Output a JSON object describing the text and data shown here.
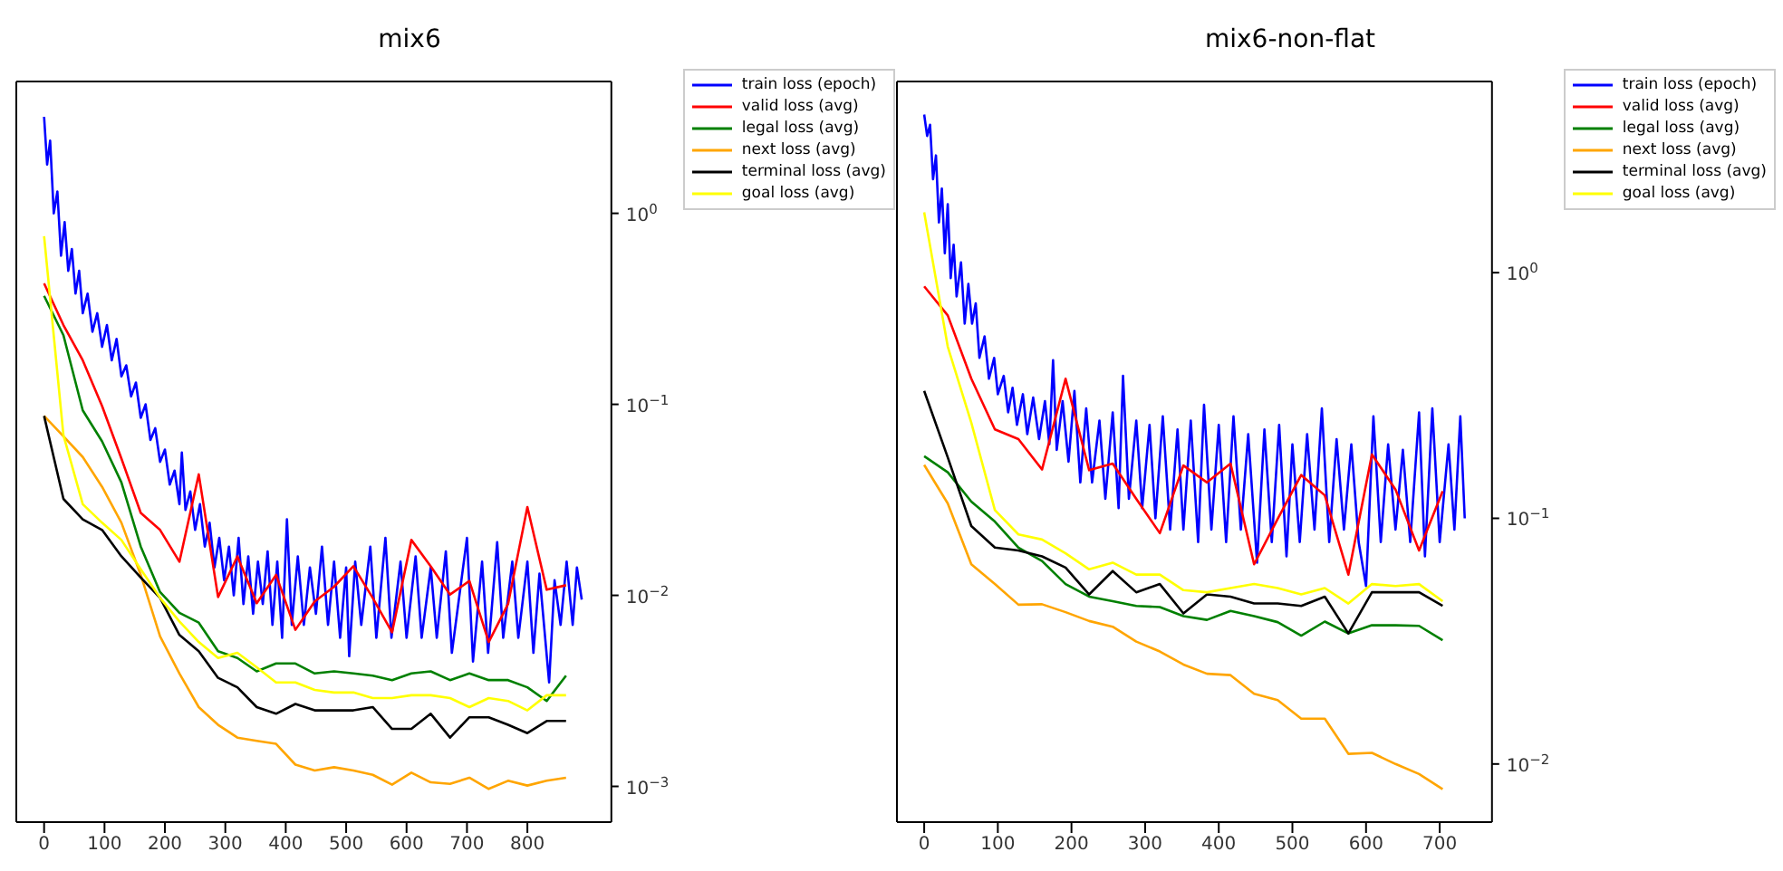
{
  "chart_data": [
    {
      "type": "line",
      "title": "mix6",
      "log": "y",
      "grid": false,
      "legend": "top right",
      "xlim": [
        -46,
        939
      ],
      "ylim": [
        0.00065,
        4.9
      ],
      "xticks": [
        0,
        100,
        200,
        300,
        400,
        500,
        600,
        700,
        800
      ],
      "yticks": [
        {
          "value": 0.001,
          "label": "10$^{−3}$"
        },
        {
          "value": 0.01,
          "label": "10$^{−2}$"
        },
        {
          "value": 0.1,
          "label": "10$^{−1}$"
        },
        {
          "value": 1,
          "label": "10$^{0}$"
        }
      ],
      "series": [
        {
          "name": "train loss (epoch)",
          "color": "#0000ff",
          "x": [
            0,
            5,
            10,
            16,
            22,
            28,
            34,
            40,
            46,
            52,
            58,
            64,
            72,
            80,
            88,
            96,
            104,
            112,
            120,
            128,
            136,
            144,
            152,
            160,
            168,
            176,
            184,
            192,
            200,
            208,
            216,
            224,
            228,
            234,
            242,
            250,
            258,
            266,
            274,
            282,
            290,
            298,
            306,
            314,
            322,
            330,
            338,
            346,
            354,
            362,
            370,
            378,
            386,
            394,
            402,
            410,
            420,
            430,
            440,
            450,
            460,
            470,
            480,
            490,
            500,
            505,
            515,
            525,
            540,
            550,
            565,
            575,
            590,
            600,
            615,
            625,
            640,
            650,
            665,
            675,
            700,
            710,
            725,
            735,
            750,
            760,
            775,
            785,
            800,
            810,
            820,
            836,
            845,
            855,
            865,
            875,
            882,
            890
          ],
          "values": [
            3.2,
            1.8,
            2.4,
            1.0,
            1.3,
            0.6,
            0.9,
            0.5,
            0.65,
            0.38,
            0.5,
            0.3,
            0.38,
            0.24,
            0.3,
            0.2,
            0.26,
            0.17,
            0.22,
            0.14,
            0.16,
            0.11,
            0.13,
            0.085,
            0.1,
            0.065,
            0.075,
            0.05,
            0.058,
            0.038,
            0.045,
            0.03,
            0.056,
            0.028,
            0.035,
            0.022,
            0.03,
            0.018,
            0.024,
            0.014,
            0.02,
            0.012,
            0.018,
            0.01,
            0.02,
            0.009,
            0.016,
            0.008,
            0.015,
            0.009,
            0.017,
            0.007,
            0.015,
            0.006,
            0.025,
            0.007,
            0.016,
            0.007,
            0.014,
            0.008,
            0.018,
            0.007,
            0.015,
            0.006,
            0.014,
            0.0048,
            0.015,
            0.007,
            0.018,
            0.006,
            0.02,
            0.006,
            0.015,
            0.006,
            0.016,
            0.006,
            0.014,
            0.006,
            0.017,
            0.005,
            0.02,
            0.0045,
            0.015,
            0.005,
            0.019,
            0.006,
            0.015,
            0.006,
            0.015,
            0.005,
            0.013,
            0.0035,
            0.012,
            0.007,
            0.015,
            0.007,
            0.014,
            0.0095
          ]
        },
        {
          "name": "valid loss (avg)",
          "color": "#ff0000",
          "x": [
            0,
            32,
            64,
            96,
            128,
            160,
            192,
            224,
            256,
            288,
            320,
            352,
            384,
            416,
            448,
            480,
            512,
            544,
            576,
            608,
            640,
            672,
            704,
            736,
            768,
            800,
            832,
            864
          ],
          "values": [
            0.43,
            0.26,
            0.17,
            0.098,
            0.052,
            0.027,
            0.022,
            0.015,
            0.043,
            0.0098,
            0.016,
            0.0091,
            0.0128,
            0.0066,
            0.0093,
            0.0111,
            0.0142,
            0.0097,
            0.0064,
            0.0195,
            0.0142,
            0.0101,
            0.0119,
            0.0057,
            0.009,
            0.029,
            0.0107,
            0.0113
          ]
        },
        {
          "name": "legal loss (avg)",
          "color": "#008000",
          "x": [
            0,
            32,
            64,
            96,
            128,
            160,
            192,
            224,
            256,
            288,
            320,
            352,
            384,
            416,
            448,
            480,
            512,
            544,
            576,
            608,
            640,
            672,
            704,
            736,
            768,
            800,
            832,
            864
          ],
          "values": [
            0.37,
            0.23,
            0.093,
            0.064,
            0.039,
            0.018,
            0.0104,
            0.0081,
            0.0072,
            0.0051,
            0.0047,
            0.004,
            0.0044,
            0.0044,
            0.0039,
            0.004,
            0.0039,
            0.0038,
            0.0036,
            0.0039,
            0.004,
            0.0036,
            0.0039,
            0.0036,
            0.0036,
            0.0033,
            0.0028,
            0.0038
          ]
        },
        {
          "name": "next loss (avg)",
          "color": "#ffa500",
          "x": [
            0,
            32,
            64,
            96,
            128,
            160,
            192,
            224,
            256,
            288,
            320,
            352,
            384,
            416,
            448,
            480,
            512,
            544,
            576,
            608,
            640,
            672,
            704,
            736,
            768,
            800,
            832,
            864
          ],
          "values": [
            0.087,
            0.068,
            0.053,
            0.037,
            0.024,
            0.0128,
            0.0061,
            0.0039,
            0.0026,
            0.0021,
            0.0018,
            0.00173,
            0.00167,
            0.0013,
            0.00121,
            0.00126,
            0.00121,
            0.00115,
            0.00102,
            0.00118,
            0.00105,
            0.00103,
            0.00111,
            0.00097,
            0.00107,
            0.00101,
            0.00107,
            0.00111
          ]
        },
        {
          "name": "terminal loss (avg)",
          "color": "#000000",
          "x": [
            0,
            32,
            64,
            96,
            128,
            160,
            192,
            224,
            256,
            288,
            320,
            352,
            384,
            416,
            448,
            480,
            512,
            544,
            576,
            608,
            640,
            672,
            704,
            736,
            768,
            800,
            832,
            864
          ],
          "values": [
            0.087,
            0.032,
            0.025,
            0.022,
            0.016,
            0.0124,
            0.0097,
            0.0062,
            0.0051,
            0.0037,
            0.0033,
            0.0026,
            0.0024,
            0.0027,
            0.0025,
            0.0025,
            0.0025,
            0.0026,
            0.002,
            0.002,
            0.0024,
            0.0018,
            0.0023,
            0.0023,
            0.0021,
            0.0019,
            0.0022,
            0.0022
          ]
        },
        {
          "name": "goal loss (avg)",
          "color": "#ffff00",
          "x": [
            0,
            32,
            64,
            96,
            128,
            160,
            192,
            224,
            256,
            288,
            320,
            352,
            384,
            416,
            448,
            480,
            512,
            544,
            576,
            608,
            640,
            672,
            704,
            736,
            768,
            800,
            832,
            864
          ],
          "values": [
            0.76,
            0.069,
            0.03,
            0.024,
            0.0195,
            0.0137,
            0.0097,
            0.0073,
            0.0057,
            0.0047,
            0.005,
            0.0042,
            0.0035,
            0.0035,
            0.0032,
            0.0031,
            0.0031,
            0.0029,
            0.0029,
            0.003,
            0.003,
            0.0029,
            0.0026,
            0.0029,
            0.0028,
            0.0025,
            0.003,
            0.003
          ]
        }
      ]
    },
    {
      "type": "line",
      "title": "mix6-non-flat",
      "log": "y",
      "grid": false,
      "legend": "top right",
      "xlim": [
        -37,
        771
      ],
      "ylim": [
        0.0058,
        6.0
      ],
      "xticks": [
        0,
        100,
        200,
        300,
        400,
        500,
        600,
        700
      ],
      "yticks": [
        {
          "value": 0.01,
          "label": "10$^{−2}$"
        },
        {
          "value": 0.1,
          "label": "10$^{−1}$"
        },
        {
          "value": 1,
          "label": "10$^{0}$"
        }
      ],
      "series": [
        {
          "name": "train loss (epoch)",
          "color": "#0000ff",
          "x": [
            0,
            4,
            8,
            12,
            16,
            20,
            24,
            28,
            32,
            36,
            40,
            44,
            50,
            55,
            60,
            65,
            70,
            75,
            82,
            88,
            95,
            100,
            108,
            114,
            120,
            126,
            134,
            140,
            148,
            156,
            164,
            170,
            175,
            180,
            188,
            196,
            204,
            212,
            220,
            228,
            238,
            246,
            256,
            264,
            270,
            278,
            288,
            296,
            306,
            314,
            324,
            334,
            344,
            352,
            362,
            372,
            380,
            390,
            400,
            410,
            420,
            430,
            440,
            452,
            462,
            472,
            482,
            492,
            500,
            510,
            520,
            530,
            540,
            550,
            560,
            570,
            580,
            590,
            600,
            610,
            620,
            630,
            640,
            650,
            660,
            672,
            680,
            690,
            700,
            712,
            720,
            728,
            734
          ],
          "values": [
            4.4,
            3.6,
            4.0,
            2.4,
            3.0,
            1.6,
            2.2,
            1.2,
            1.9,
            0.95,
            1.3,
            0.8,
            1.1,
            0.62,
            0.9,
            0.62,
            0.75,
            0.45,
            0.55,
            0.37,
            0.45,
            0.32,
            0.38,
            0.27,
            0.34,
            0.24,
            0.32,
            0.22,
            0.31,
            0.21,
            0.3,
            0.2,
            0.44,
            0.19,
            0.3,
            0.17,
            0.33,
            0.14,
            0.28,
            0.14,
            0.25,
            0.12,
            0.27,
            0.11,
            0.38,
            0.12,
            0.25,
            0.11,
            0.24,
            0.1,
            0.26,
            0.09,
            0.23,
            0.09,
            0.25,
            0.08,
            0.29,
            0.09,
            0.24,
            0.08,
            0.26,
            0.09,
            0.22,
            0.066,
            0.23,
            0.08,
            0.24,
            0.07,
            0.2,
            0.08,
            0.22,
            0.09,
            0.28,
            0.08,
            0.21,
            0.09,
            0.2,
            0.08,
            0.053,
            0.26,
            0.08,
            0.2,
            0.09,
            0.19,
            0.08,
            0.27,
            0.07,
            0.28,
            0.08,
            0.2,
            0.09,
            0.26,
            0.1
          ]
        },
        {
          "name": "valid loss (avg)",
          "color": "#ff0000",
          "x": [
            0,
            32,
            64,
            96,
            128,
            160,
            192,
            224,
            256,
            288,
            320,
            352,
            384,
            416,
            448,
            480,
            512,
            544,
            576,
            608,
            640,
            672,
            704
          ],
          "values": [
            0.88,
            0.67,
            0.37,
            0.23,
            0.21,
            0.158,
            0.37,
            0.157,
            0.167,
            0.12,
            0.087,
            0.164,
            0.14,
            0.167,
            0.065,
            0.0995,
            0.15,
            0.124,
            0.059,
            0.182,
            0.131,
            0.074,
            0.129
          ]
        },
        {
          "name": "legal loss (avg)",
          "color": "#008000",
          "x": [
            0,
            32,
            64,
            96,
            128,
            160,
            192,
            224,
            256,
            288,
            320,
            352,
            384,
            416,
            448,
            480,
            512,
            544,
            576,
            608,
            640,
            672,
            704
          ],
          "values": [
            0.179,
            0.154,
            0.117,
            0.097,
            0.076,
            0.067,
            0.054,
            0.048,
            0.046,
            0.044,
            0.0435,
            0.04,
            0.0386,
            0.042,
            0.04,
            0.0378,
            0.0333,
            0.038,
            0.034,
            0.0367,
            0.0367,
            0.0365,
            0.0319
          ]
        },
        {
          "name": "next loss (avg)",
          "color": "#ffa500",
          "x": [
            0,
            32,
            64,
            96,
            128,
            160,
            192,
            224,
            256,
            288,
            320,
            352,
            384,
            416,
            448,
            480,
            512,
            544,
            576,
            608,
            640,
            672,
            704
          ],
          "values": [
            0.165,
            0.115,
            0.065,
            0.054,
            0.0445,
            0.0447,
            0.0415,
            0.0382,
            0.0362,
            0.0315,
            0.0287,
            0.0254,
            0.0233,
            0.023,
            0.0193,
            0.0182,
            0.0153,
            0.0153,
            0.011,
            0.0111,
            0.01,
            0.0091,
            0.0079
          ]
        },
        {
          "name": "terminal loss (avg)",
          "color": "#000000",
          "x": [
            0,
            32,
            64,
            96,
            128,
            160,
            192,
            224,
            256,
            288,
            320,
            352,
            384,
            416,
            448,
            480,
            512,
            544,
            576,
            608,
            640,
            672,
            704
          ],
          "values": [
            0.33,
            0.177,
            0.093,
            0.076,
            0.074,
            0.07,
            0.063,
            0.049,
            0.061,
            0.05,
            0.054,
            0.041,
            0.049,
            0.048,
            0.045,
            0.045,
            0.044,
            0.048,
            0.034,
            0.05,
            0.05,
            0.05,
            0.044
          ]
        },
        {
          "name": "goal loss (avg)",
          "color": "#ffff00",
          "x": [
            0,
            32,
            64,
            96,
            128,
            160,
            192,
            224,
            256,
            288,
            320,
            352,
            384,
            416,
            448,
            480,
            512,
            544,
            576,
            608,
            640,
            672,
            704
          ],
          "values": [
            1.76,
            0.5,
            0.245,
            0.108,
            0.086,
            0.082,
            0.072,
            0.062,
            0.066,
            0.059,
            0.059,
            0.051,
            0.05,
            0.052,
            0.054,
            0.052,
            0.049,
            0.052,
            0.045,
            0.054,
            0.053,
            0.054,
            0.046
          ]
        }
      ]
    }
  ]
}
